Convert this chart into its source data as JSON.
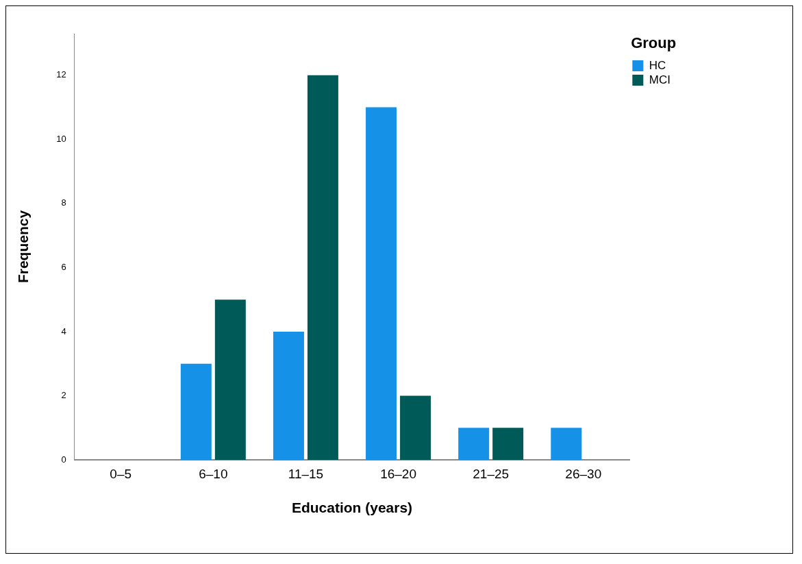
{
  "chart_data": {
    "type": "bar",
    "xlabel": "Education (years)",
    "ylabel": "Frequency",
    "legend_title": "Group",
    "categories": [
      "0–5",
      "6–10",
      "11–15",
      "16–20",
      "21–25",
      "26–30"
    ],
    "series": [
      {
        "name": "HC",
        "color": "#1691e8",
        "values": [
          0,
          3,
          4,
          11,
          1,
          1
        ]
      },
      {
        "name": "MCI",
        "color": "#005b58",
        "values": [
          0,
          5,
          12,
          2,
          1,
          0
        ]
      }
    ],
    "ylim": [
      0,
      13.3
    ],
    "yticks": [
      0,
      2,
      4,
      6,
      8,
      10,
      12
    ],
    "grid": false,
    "legend": "top right"
  }
}
